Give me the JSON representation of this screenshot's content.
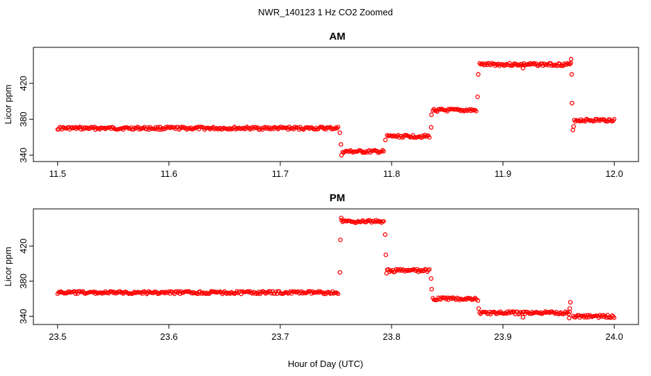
{
  "title": "NWR_140123  1 Hz CO2 Zoomed",
  "xlabel": "Hour of Day (UTC)",
  "point_color": "#ff0000",
  "chart_data": [
    {
      "type": "scatter",
      "panel_title": "AM",
      "ylabel": "Licor ppm",
      "xlim": [
        11.5,
        12.0
      ],
      "ylim": [
        338,
        455
      ],
      "xticks": [
        11.5,
        11.6,
        11.7,
        11.8,
        11.9,
        12.0
      ],
      "xtick_labels": [
        "11.5",
        "11.6",
        "11.7",
        "11.8",
        "11.9",
        "12.0"
      ],
      "yticks": [
        340,
        380,
        420
      ],
      "ytick_labels": [
        "340",
        "380",
        "420"
      ],
      "segments": [
        {
          "x_start": 11.5,
          "x_end": 11.752,
          "y": 370
        },
        {
          "x_start": 11.756,
          "x_end": 11.793,
          "y": 344
        },
        {
          "x_start": 11.796,
          "x_end": 11.834,
          "y": 361
        },
        {
          "x_start": 11.837,
          "x_end": 11.876,
          "y": 390
        },
        {
          "x_start": 11.879,
          "x_end": 11.961,
          "y": 441
        },
        {
          "x_start": 11.964,
          "x_end": 12.0,
          "y": 379
        }
      ],
      "points": [
        {
          "x": 11.7535,
          "y": 365
        },
        {
          "x": 11.7545,
          "y": 352
        },
        {
          "x": 11.755,
          "y": 340
        },
        {
          "x": 11.7945,
          "y": 357
        },
        {
          "x": 11.8355,
          "y": 371
        },
        {
          "x": 11.8358,
          "y": 385
        },
        {
          "x": 11.8772,
          "y": 405
        },
        {
          "x": 11.8778,
          "y": 430
        },
        {
          "x": 11.918,
          "y": 437
        },
        {
          "x": 11.9612,
          "y": 447
        },
        {
          "x": 11.9618,
          "y": 430
        },
        {
          "x": 11.962,
          "y": 398
        },
        {
          "x": 11.9628,
          "y": 368
        },
        {
          "x": 11.9635,
          "y": 372
        }
      ]
    },
    {
      "type": "scatter",
      "panel_title": "PM",
      "ylabel": "Licor ppm",
      "xlim": [
        23.5,
        24.0
      ],
      "ylim": [
        336,
        457
      ],
      "xticks": [
        23.5,
        23.6,
        23.7,
        23.8,
        23.9,
        24.0
      ],
      "xtick_labels": [
        "23.5",
        "23.6",
        "23.7",
        "23.8",
        "23.9",
        "24.0"
      ],
      "yticks": [
        340,
        380,
        420
      ],
      "ytick_labels": [
        "340",
        "380",
        "420"
      ],
      "segments": [
        {
          "x_start": 23.5,
          "x_end": 23.752,
          "y": 367
        },
        {
          "x_start": 23.755,
          "x_end": 23.793,
          "y": 448
        },
        {
          "x_start": 23.796,
          "x_end": 23.834,
          "y": 392
        },
        {
          "x_start": 23.837,
          "x_end": 23.876,
          "y": 360
        },
        {
          "x_start": 23.879,
          "x_end": 23.96,
          "y": 344
        },
        {
          "x_start": 23.963,
          "x_end": 24.0,
          "y": 340
        }
      ],
      "points": [
        {
          "x": 23.7535,
          "y": 390
        },
        {
          "x": 23.754,
          "y": 427
        },
        {
          "x": 23.7548,
          "y": 452
        },
        {
          "x": 23.7942,
          "y": 433
        },
        {
          "x": 23.7948,
          "y": 410
        },
        {
          "x": 23.7955,
          "y": 389
        },
        {
          "x": 23.8355,
          "y": 383
        },
        {
          "x": 23.836,
          "y": 371
        },
        {
          "x": 23.8775,
          "y": 358
        },
        {
          "x": 23.8782,
          "y": 349
        },
        {
          "x": 23.918,
          "y": 339
        },
        {
          "x": 23.9595,
          "y": 338
        },
        {
          "x": 23.96,
          "y": 349
        },
        {
          "x": 23.9605,
          "y": 356
        }
      ]
    }
  ]
}
